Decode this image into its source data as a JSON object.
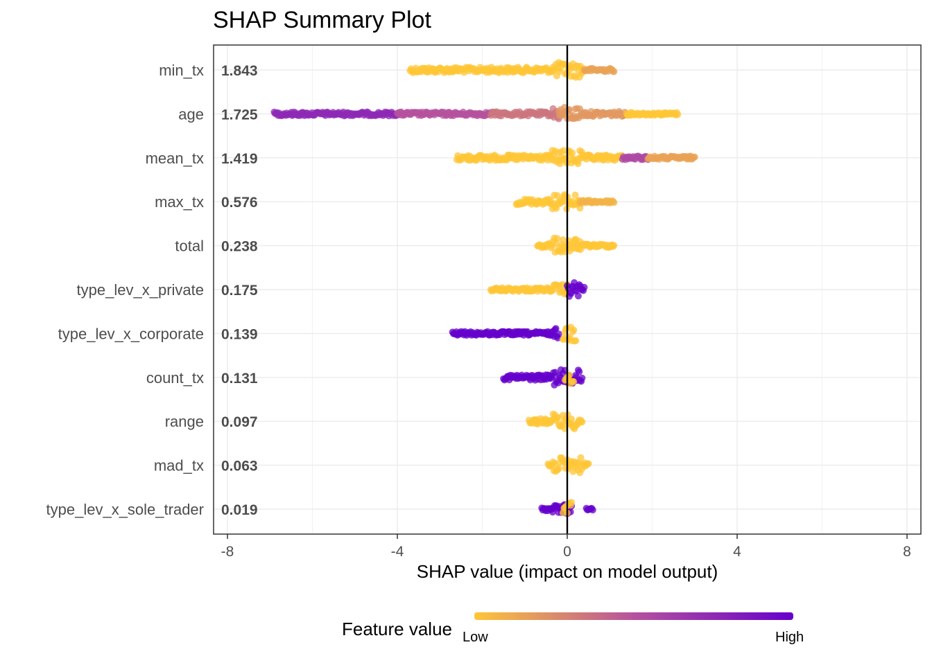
{
  "chart_data": {
    "type": "scatter",
    "subtype": "shap-summary-beeswarm",
    "title": "SHAP Summary Plot",
    "xlabel": "SHAP value (impact on model output)",
    "ylabel": "",
    "xlim": [
      -8,
      8
    ],
    "x_ticks": [
      -8,
      -4,
      0,
      4,
      8
    ],
    "x_tick_labels": [
      "-8",
      "-4",
      "0",
      "4",
      "8"
    ],
    "zero_line": true,
    "grid": true,
    "legend": {
      "title": "Feature value",
      "low_label": "Low",
      "high_label": "High",
      "low_color": "#FFC637",
      "high_color": "#6600CC",
      "placement": "bottom"
    },
    "features": [
      {
        "name": "min_tx",
        "mean_abs_shap": "1.843",
        "segments": [
          {
            "x0": -3.7,
            "x1": 0.4,
            "c": 0.0,
            "t": 1.0
          },
          {
            "x0": 0.4,
            "x1": 1.1,
            "c": 0.15,
            "t": 0.6
          }
        ]
      },
      {
        "name": "age",
        "mean_abs_shap": "1.725",
        "segments": [
          {
            "x0": -6.9,
            "x1": -4.0,
            "c": 0.75,
            "t": 0.7
          },
          {
            "x0": -4.0,
            "x1": -1.8,
            "c": 0.5,
            "t": 0.7
          },
          {
            "x0": -1.8,
            "x1": -0.2,
            "c": 0.35,
            "t": 0.8
          },
          {
            "x0": -0.2,
            "x1": 1.4,
            "c": 0.2,
            "t": 0.9
          },
          {
            "x0": 1.4,
            "x1": 2.6,
            "c": 0.0,
            "t": 0.5
          }
        ]
      },
      {
        "name": "mean_tx",
        "mean_abs_shap": "1.419",
        "segments": [
          {
            "x0": -2.6,
            "x1": 1.3,
            "c": 0.0,
            "t": 1.0
          },
          {
            "x0": 1.3,
            "x1": 1.9,
            "c": 0.55,
            "t": 0.7
          },
          {
            "x0": 1.9,
            "x1": 3.0,
            "c": 0.15,
            "t": 0.6
          }
        ]
      },
      {
        "name": "max_tx",
        "mean_abs_shap": "0.576",
        "segments": [
          {
            "x0": -1.2,
            "x1": 0.3,
            "c": 0.0,
            "t": 1.0
          },
          {
            "x0": 0.3,
            "x1": 1.1,
            "c": 0.08,
            "t": 0.5
          }
        ]
      },
      {
        "name": "total",
        "mean_abs_shap": "0.238",
        "segments": [
          {
            "x0": -0.7,
            "x1": 0.2,
            "c": 0.0,
            "t": 1.0
          },
          {
            "x0": 0.2,
            "x1": 1.1,
            "c": 0.0,
            "t": 0.6
          }
        ]
      },
      {
        "name": "type_lev_x_private",
        "mean_abs_shap": "0.175",
        "segments": [
          {
            "x0": -1.8,
            "x1": 0.0,
            "c": 0.0,
            "t": 0.7
          },
          {
            "x0": 0.0,
            "x1": 0.4,
            "c": 1.0,
            "t": 1.0
          }
        ]
      },
      {
        "name": "type_lev_x_corporate",
        "mean_abs_shap": "0.139",
        "segments": [
          {
            "x0": -2.7,
            "x1": -0.2,
            "c": 1.0,
            "t": 0.7
          },
          {
            "x0": -0.1,
            "x1": 0.2,
            "c": 0.0,
            "t": 1.0
          }
        ]
      },
      {
        "name": "count_tx",
        "mean_abs_shap": "0.131",
        "segments": [
          {
            "x0": -1.5,
            "x1": 0.35,
            "c": 1.0,
            "t": 1.0
          },
          {
            "x0": -0.05,
            "x1": 0.15,
            "c": 0.0,
            "t": 1.0
          }
        ]
      },
      {
        "name": "range",
        "mean_abs_shap": "0.097",
        "segments": [
          {
            "x0": -0.9,
            "x1": 0.35,
            "c": 0.0,
            "t": 1.0
          }
        ]
      },
      {
        "name": "mad_tx",
        "mean_abs_shap": "0.063",
        "segments": [
          {
            "x0": -0.45,
            "x1": 0.5,
            "c": 0.0,
            "t": 1.0
          }
        ]
      },
      {
        "name": "type_lev_x_sole_trader",
        "mean_abs_shap": "0.019",
        "segments": [
          {
            "x0": -0.6,
            "x1": 0.1,
            "c": 1.0,
            "t": 0.6
          },
          {
            "x0": -0.1,
            "x1": 0.1,
            "c": 0.0,
            "t": 1.0
          },
          {
            "x0": 0.45,
            "x1": 0.6,
            "c": 1.0,
            "t": 0.4
          }
        ]
      }
    ]
  }
}
